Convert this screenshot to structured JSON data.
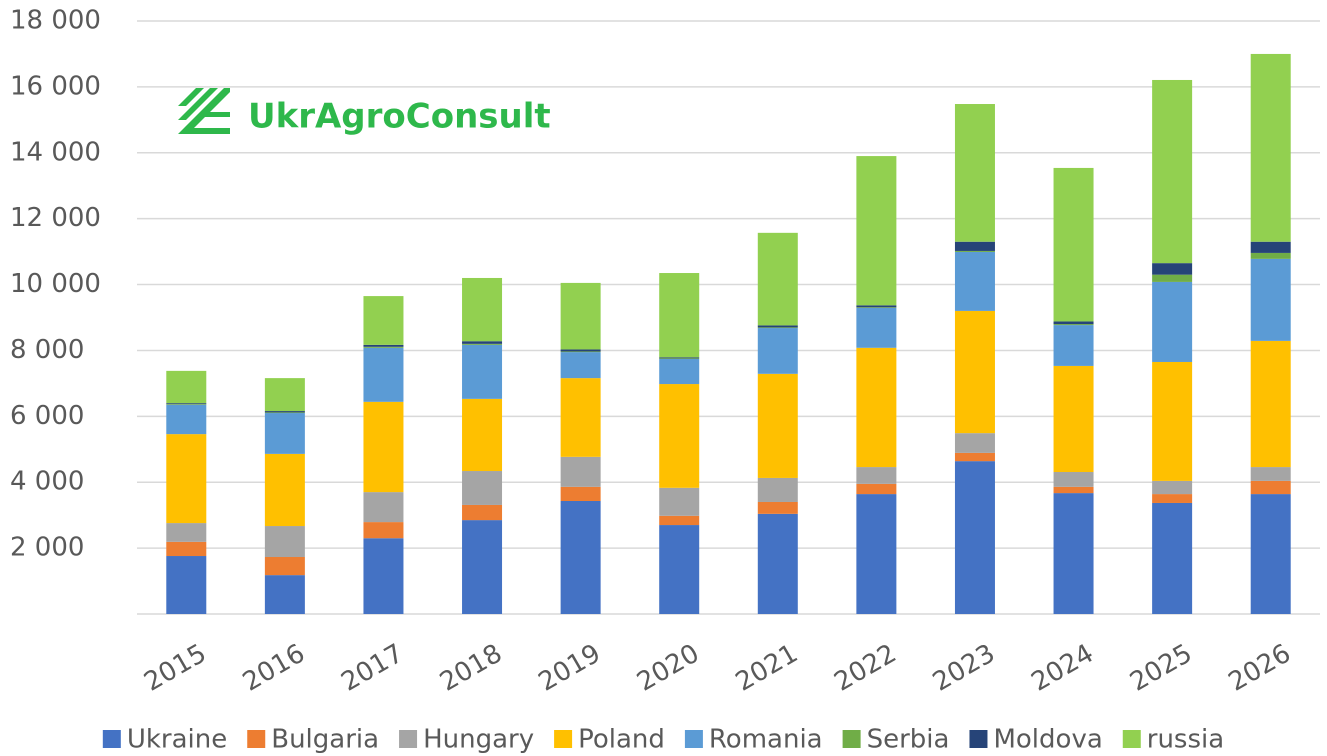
{
  "logo": "UkrAgroConsult",
  "chart_data": {
    "type": "stacked_bar",
    "categories": [
      "2015",
      "2016",
      "2017",
      "2018",
      "2019",
      "2020",
      "2021",
      "2022",
      "2023",
      "2024",
      "2025",
      "2026"
    ],
    "series": [
      {
        "name": "Ukraine",
        "color": "#4472c4",
        "values": [
          1760,
          1180,
          2300,
          2850,
          3430,
          2700,
          3040,
          3640,
          4640,
          3670,
          3370,
          3640
        ]
      },
      {
        "name": "Bulgaria",
        "color": "#ed7d31",
        "values": [
          430,
          550,
          490,
          460,
          430,
          280,
          360,
          310,
          250,
          190,
          270,
          400
        ]
      },
      {
        "name": "Hungary",
        "color": "#a5a5a5",
        "values": [
          570,
          940,
          910,
          1030,
          910,
          850,
          730,
          510,
          600,
          450,
          400,
          420
        ]
      },
      {
        "name": "Poland",
        "color": "#ffc000",
        "values": [
          2700,
          2190,
          2740,
          2190,
          2390,
          3150,
          3160,
          3620,
          3710,
          3220,
          3610,
          3830
        ]
      },
      {
        "name": "Romania",
        "color": "#5b9bd5",
        "values": [
          890,
          1240,
          1640,
          1640,
          790,
          760,
          1390,
          1210,
          1790,
          1240,
          2430,
          2490
        ]
      },
      {
        "name": "Serbia",
        "color": "#70ad47",
        "values": [
          20,
          20,
          30,
          30,
          20,
          20,
          20,
          20,
          30,
          30,
          220,
          180
        ]
      },
      {
        "name": "Moldova",
        "color": "#264478",
        "values": [
          30,
          40,
          60,
          80,
          60,
          30,
          60,
          60,
          280,
          80,
          350,
          340
        ]
      },
      {
        "name": "russia",
        "color": "#92d050",
        "values": [
          980,
          1000,
          1480,
          1920,
          2020,
          2560,
          2810,
          4530,
          4180,
          4660,
          5560,
          5700
        ]
      }
    ],
    "ylim": [
      0,
      18000
    ],
    "yticks": [
      {
        "value": 2000,
        "label": "2 000"
      },
      {
        "value": 4000,
        "label": "4 000"
      },
      {
        "value": 6000,
        "label": "6 000"
      },
      {
        "value": 8000,
        "label": "8 000"
      },
      {
        "value": 10000,
        "label": "10 000"
      },
      {
        "value": 12000,
        "label": "12 000"
      },
      {
        "value": 14000,
        "label": "14 000"
      },
      {
        "value": 16000,
        "label": "16 000"
      },
      {
        "value": 18000,
        "label": "18 000"
      }
    ],
    "grid": true
  }
}
